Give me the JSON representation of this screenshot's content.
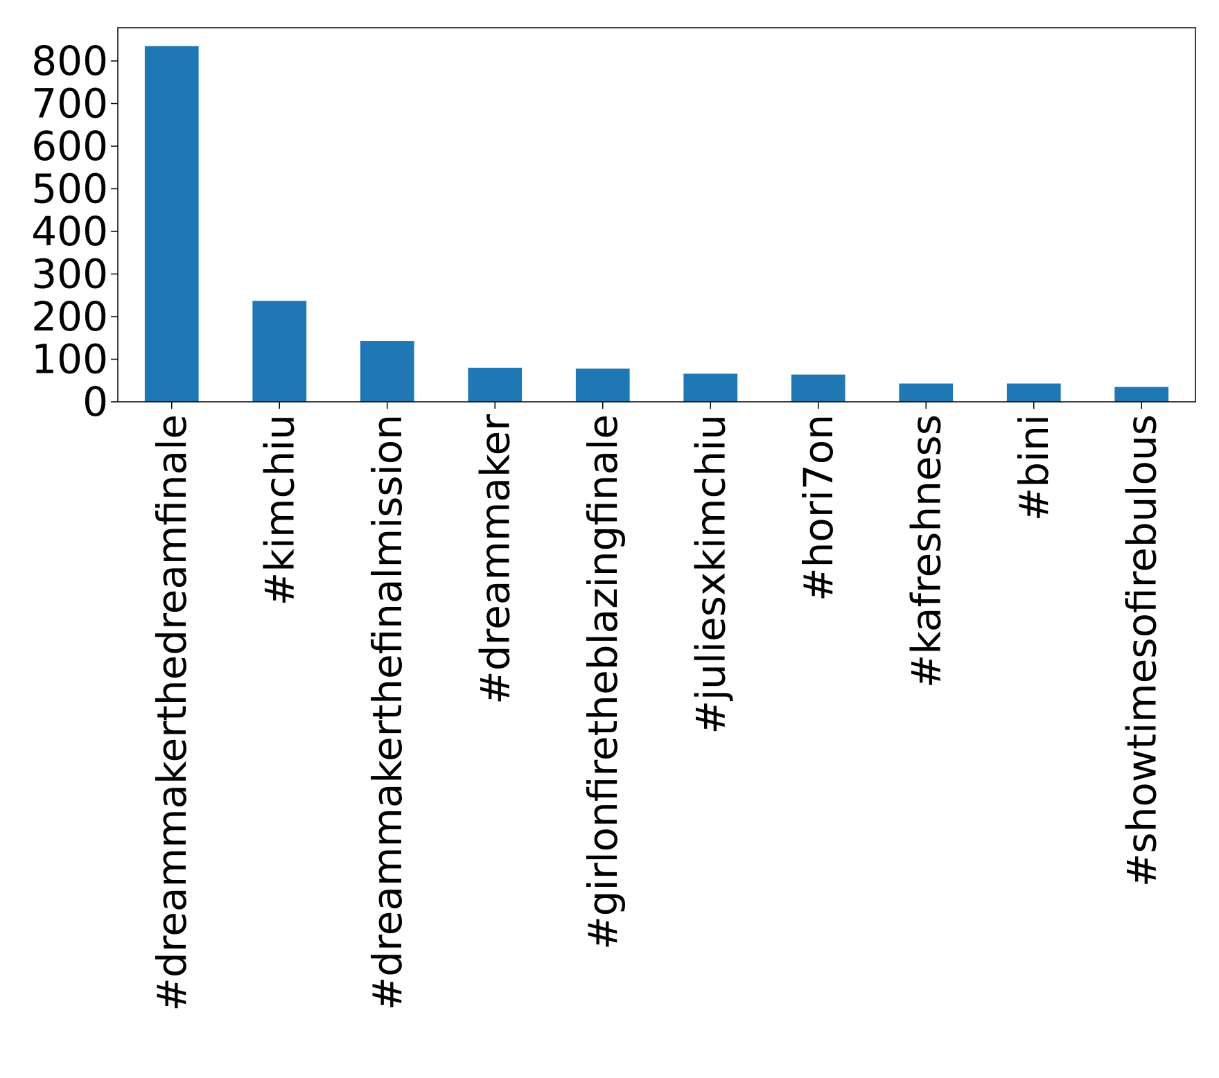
{
  "chart_data": {
    "type": "bar",
    "title": "",
    "xlabel": "",
    "ylabel": "",
    "categories": [
      "#dreammakerthedreamfinale",
      "#kimchiu",
      "#dreammakerthefinalmission",
      "#dreammaker",
      "#girlonfiretheblazingfinale",
      "#juliesxkimchiu",
      "#hori7on",
      "#kafreshness",
      "#bini",
      "#showtimesofirebulous"
    ],
    "values": [
      835,
      237,
      143,
      80,
      78,
      66,
      64,
      43,
      43,
      35
    ],
    "ylim": [
      0,
      878
    ],
    "yticks": [
      0,
      100,
      200,
      300,
      400,
      500,
      600,
      700,
      800
    ],
    "grid": false,
    "legend": "none",
    "colors": {
      "bar": "#1f77b4",
      "axes": "#000000"
    }
  }
}
